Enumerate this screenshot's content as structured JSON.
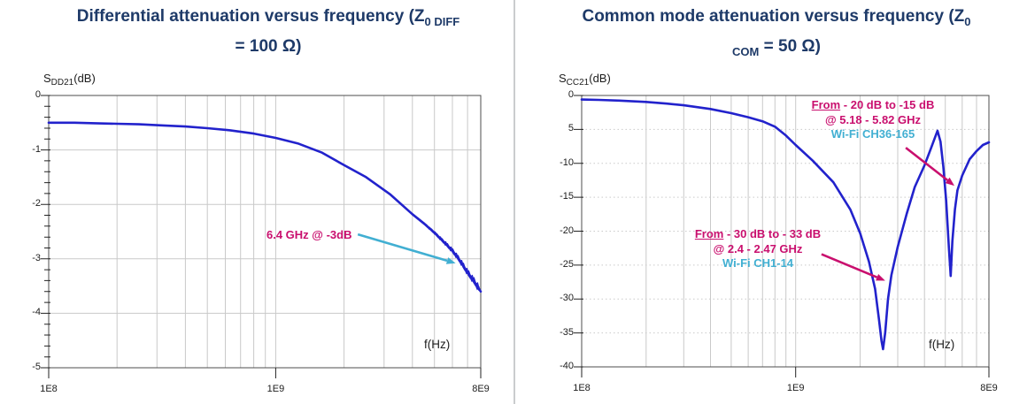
{
  "colors": {
    "title_navy": "#1E3A68",
    "curve_blue": "#2222CC",
    "magenta": "#C90F6E",
    "cyan": "#41AFD2",
    "grid": "#C9C9C9",
    "axis": "#4D4D4D",
    "tick_text": "#1c1c1c",
    "divider": "#CACCCE"
  },
  "chart_data": [
    {
      "id": "differential",
      "type": "line",
      "title": "Differential attenuation versus frequency (Z0 DIFF = 100 Ω)",
      "title_parts": {
        "line1_main": "Differential attenuation versus frequency (Z",
        "line1_sub": "0 DIFF",
        "line2_sub": "",
        "line2_main": "= 100 Ω)"
      },
      "ylabel_parts": {
        "prefix": "S",
        "sub": "DD21",
        "suffix": "(dB)"
      },
      "xlabel": "f(Hz)",
      "x_scale": "log",
      "xlim": [
        100000000.0,
        8000000000.0
      ],
      "ylim": [
        -5,
        0
      ],
      "x_ticks": [
        {
          "value": 100000000.0,
          "label": "1E8"
        },
        {
          "value": 1000000000.0,
          "label": "1E9"
        },
        {
          "value": 8000000000.0,
          "label": "8E9"
        }
      ],
      "y_ticks": [
        {
          "value": 0,
          "label": "0"
        },
        {
          "value": -1,
          "label": "-1"
        },
        {
          "value": -2,
          "label": "-2"
        },
        {
          "value": -3,
          "label": "-3"
        },
        {
          "value": -4,
          "label": "-4"
        },
        {
          "value": -5,
          "label": "-5"
        }
      ],
      "y_grid_step": 1,
      "y_minor_step": 0.2,
      "grid": {
        "h_style": "solid",
        "v_style": "solid"
      },
      "series": [
        {
          "name": "SDD21",
          "color": "#2222CC",
          "x": [
            100000000.0,
            130000000.0,
            160000000.0,
            200000000.0,
            250000000.0,
            320000000.0,
            400000000.0,
            500000000.0,
            630000000.0,
            800000000.0,
            1000000000.0,
            1250000000.0,
            1600000000.0,
            2000000000.0,
            2500000000.0,
            3200000000.0,
            4000000000.0,
            4500000000.0,
            5000000000.0,
            5600000000.0,
            6000000000.0,
            6400000000.0,
            7000000000.0,
            7500000000.0,
            8000000000.0
          ],
          "y": [
            -0.5,
            -0.5,
            -0.51,
            -0.52,
            -0.53,
            -0.55,
            -0.57,
            -0.6,
            -0.64,
            -0.7,
            -0.78,
            -0.88,
            -1.05,
            -1.28,
            -1.5,
            -1.82,
            -2.18,
            -2.35,
            -2.52,
            -2.72,
            -2.85,
            -3.0,
            -3.25,
            -3.42,
            -3.6
          ],
          "noise_from": 4200000000.0
        }
      ],
      "annotations": [
        {
          "text": "6.4 GHz @ -3dB"
        }
      ],
      "arrows": [
        {
          "color": "#41AFD2",
          "x1": 2300000000.0,
          "y1": -2.55,
          "x2": 6200000000.0,
          "y2": -3.08
        }
      ]
    },
    {
      "id": "common-mode",
      "type": "line",
      "title": "Common mode attenuation versus frequency (Z0 COM = 50 Ω)",
      "title_parts": {
        "line1_main": "Common mode attenuation versus frequency (Z",
        "line1_sub": "0",
        "line2_sub": "COM",
        "line2_main": " = 50 Ω)"
      },
      "ylabel_parts": {
        "prefix": "S",
        "sub": "CC21",
        "suffix": "(dB)"
      },
      "xlabel": "f(Hz)",
      "x_scale": "log",
      "xlim": [
        100000000.0,
        8000000000.0
      ],
      "ylim": [
        -40,
        0
      ],
      "x_ticks": [
        {
          "value": 100000000.0,
          "label": "1E8"
        },
        {
          "value": 1000000000.0,
          "label": "1E9"
        },
        {
          "value": 8000000000.0,
          "label": "8E9"
        }
      ],
      "y_ticks": [
        {
          "value": 0,
          "label": "0"
        },
        {
          "value": -5,
          "label": "5"
        },
        {
          "value": -10,
          "label": "-10"
        },
        {
          "value": -15,
          "label": "-15"
        },
        {
          "value": -20,
          "label": "-20"
        },
        {
          "value": -25,
          "label": "-25"
        },
        {
          "value": -30,
          "label": "-30"
        },
        {
          "value": -35,
          "label": "-35"
        },
        {
          "value": -40,
          "label": "-40"
        }
      ],
      "y_grid_step": 5,
      "y_minor_step": 0,
      "grid": {
        "h_style": "dotted",
        "v_style": "solid"
      },
      "series": [
        {
          "name": "SCC21",
          "color": "#2222CC",
          "x": [
            100000000.0,
            120000000.0,
            150000000.0,
            200000000.0,
            250000000.0,
            300000000.0,
            400000000.0,
            500000000.0,
            600000000.0,
            700000000.0,
            800000000.0,
            900000000.0,
            1000000000.0,
            1200000000.0,
            1500000000.0,
            1800000000.0,
            2000000000.0,
            2200000000.0,
            2350000000.0,
            2450000000.0,
            2520000000.0,
            2560000000.0,
            2620000000.0,
            2700000000.0,
            2800000000.0,
            3000000000.0,
            3300000000.0,
            3600000000.0,
            4000000000.0,
            4300000000.0,
            4600000000.0,
            4750000000.0,
            4900000000.0,
            5050000000.0,
            5200000000.0,
            5300000000.0,
            5400000000.0,
            5550000000.0,
            5700000000.0,
            6000000000.0,
            6500000000.0,
            7000000000.0,
            7500000000.0,
            8000000000.0
          ],
          "y": [
            -0.6,
            -0.65,
            -0.75,
            -0.95,
            -1.2,
            -1.45,
            -2.0,
            -2.6,
            -3.2,
            -3.8,
            -4.6,
            -5.9,
            -7.3,
            -9.6,
            -12.8,
            -16.8,
            -20.3,
            -24.5,
            -28.5,
            -33.0,
            -36.2,
            -37.4,
            -35.0,
            -30.0,
            -26.5,
            -22.3,
            -17.5,
            -13.5,
            -10.3,
            -7.7,
            -5.2,
            -6.8,
            -10.5,
            -15.5,
            -22.5,
            -26.6,
            -21.5,
            -16.8,
            -14.0,
            -11.8,
            -9.4,
            -8.2,
            -7.3,
            -6.9
          ]
        }
      ],
      "annotations": [
        {
          "line1_word": "From",
          "line1_rest": " - 20 dB to -15 dB",
          "line2": "@ 5.18 - 5.82 GHz",
          "line3": "Wi-Fi CH36-165"
        },
        {
          "line1_word": "From",
          "line1_rest": " - 30 dB to - 33 dB",
          "line2": "@ 2.4 - 2.47 GHz",
          "line3": "Wi-Fi CH1-14"
        }
      ],
      "arrows": [
        {
          "color": "#C90F6E",
          "x1": 3270000000.0,
          "y1": -7.7,
          "x2": 5520000000.0,
          "y2": -13.3
        },
        {
          "color": "#C90F6E",
          "x1": 1320000000.0,
          "y1": -23.4,
          "x2": 2620000000.0,
          "y2": -27.3
        }
      ]
    }
  ]
}
